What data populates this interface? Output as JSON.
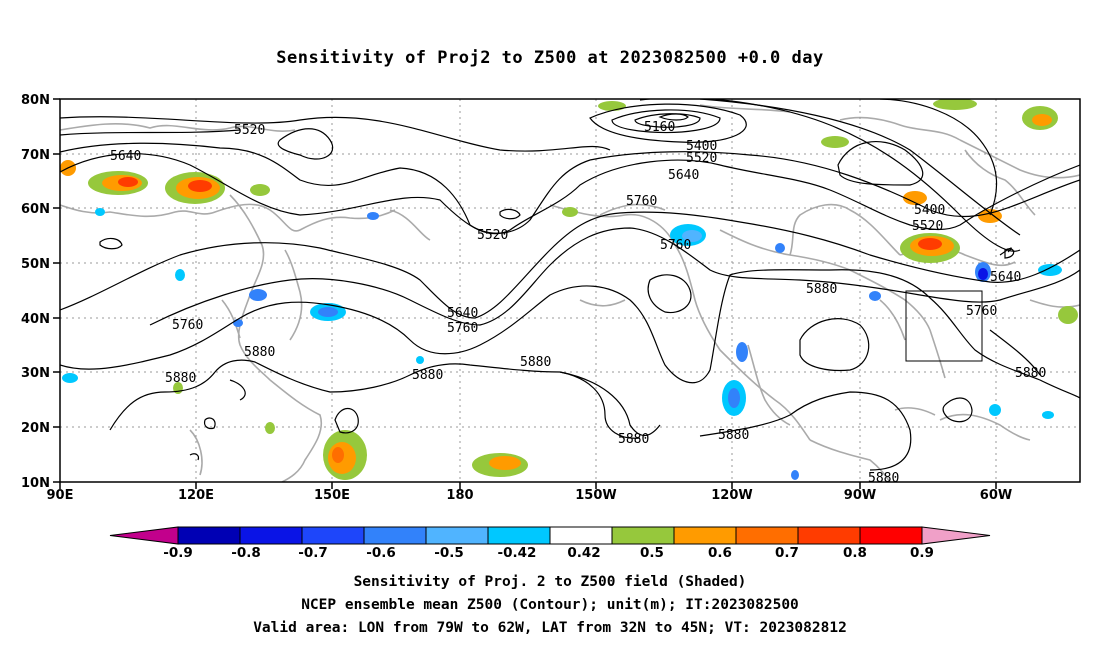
{
  "title": "Sensitivity of Proj2 to Z500 at 2023082500 +0.0 day",
  "footer": {
    "line1": "Sensitivity of Proj. 2 to Z500 field (Shaded)",
    "line2": "NCEP ensemble mean Z500 (Contour); unit(m); IT:2023082500",
    "line3": "Valid area: LON from 79W to 62W, LAT from 32N to 45N; VT: 2023082812"
  },
  "map": {
    "lon_ticks": [
      "90E",
      "120E",
      "150E",
      "180",
      "150W",
      "120W",
      "90W",
      "60W"
    ],
    "lat_ticks": [
      "80N",
      "70N",
      "60N",
      "50N",
      "40N",
      "30N",
      "20N",
      "10N"
    ],
    "grid": "dotted",
    "valid_area": {
      "lon_west": "79W",
      "lon_east": "62W",
      "lat_south": "32N",
      "lat_north": "45N"
    }
  },
  "contour_labels": [
    "5520",
    "5640",
    "5160",
    "5400",
    "5520",
    "5640",
    "5760",
    "5520",
    "5760",
    "5400",
    "5520",
    "5640",
    "5760",
    "5640",
    "5760",
    "5880",
    "5760",
    "5880",
    "5880",
    "5880",
    "5880",
    "5880",
    "5880",
    "5880",
    "5880"
  ],
  "colorbar": {
    "labels": [
      "-0.9",
      "-0.8",
      "-0.7",
      "-0.6",
      "-0.5",
      "-0.42",
      "0.42",
      "0.5",
      "0.6",
      "0.7",
      "0.8",
      "0.9"
    ],
    "colors": [
      "#c2008c",
      "#0000b4",
      "#0a14e6",
      "#1e46fa",
      "#3282fa",
      "#50b4ff",
      "#00c8ff",
      "#ffffff",
      "#96c83c",
      "#ff9b00",
      "#ff6e00",
      "#ff3c00",
      "#ff0000",
      "#f0a0c8"
    ]
  }
}
